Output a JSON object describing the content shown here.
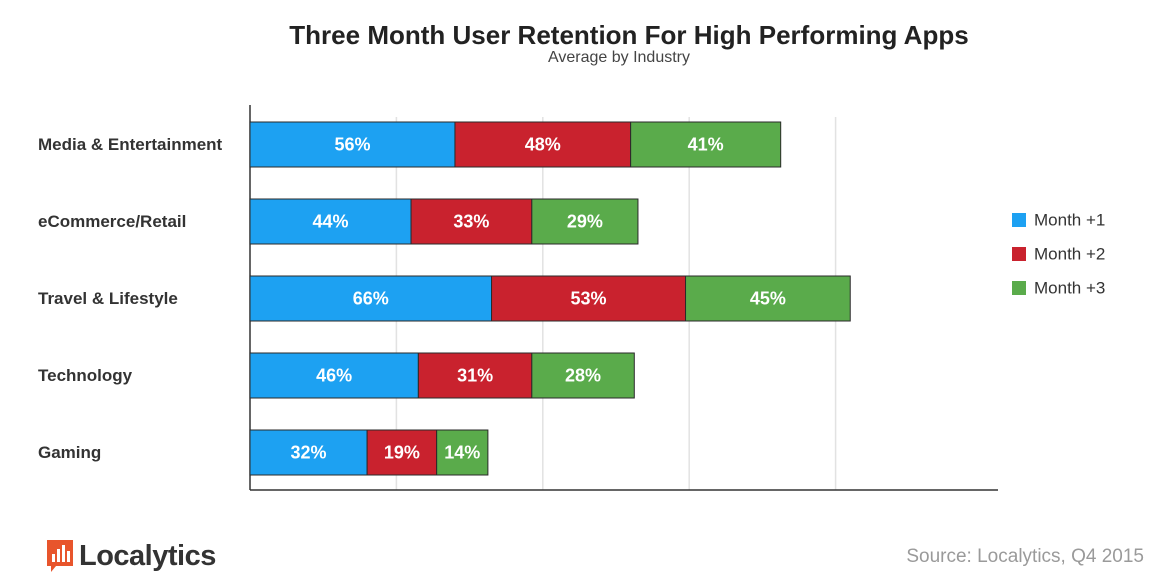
{
  "chart_data": {
    "type": "bar",
    "orientation": "horizontal",
    "stacked": true,
    "title": "Three Month User Retention For High Performing Apps",
    "subtitle": "Average  by Industry",
    "categories": [
      "Media & Entertainment",
      "eCommerce/Retail",
      "Travel & Lifestyle",
      "Technology",
      "Gaming"
    ],
    "series": [
      {
        "name": "Month +1",
        "color": "#1da1f2",
        "values": [
          56,
          44,
          66,
          46,
          32
        ],
        "labels": [
          "56%",
          "44%",
          "66%",
          "46%",
          "32%"
        ]
      },
      {
        "name": "Month +2",
        "color": "#c9222e",
        "values": [
          48,
          33,
          53,
          31,
          19
        ],
        "labels": [
          "48%",
          "33%",
          "53%",
          "31%",
          "19%"
        ]
      },
      {
        "name": "Month +3",
        "color": "#5aab4b",
        "values": [
          41,
          29,
          45,
          28,
          14
        ],
        "labels": [
          "41%",
          "29%",
          "45%",
          "28%",
          "14%"
        ]
      }
    ],
    "xlim": [
      0,
      180
    ],
    "grid": true,
    "legend_position": "right"
  },
  "branding": {
    "logo_text": "Localytics",
    "logo_color": "#e8552c"
  },
  "source": "Source: Localytics, Q4 2015"
}
